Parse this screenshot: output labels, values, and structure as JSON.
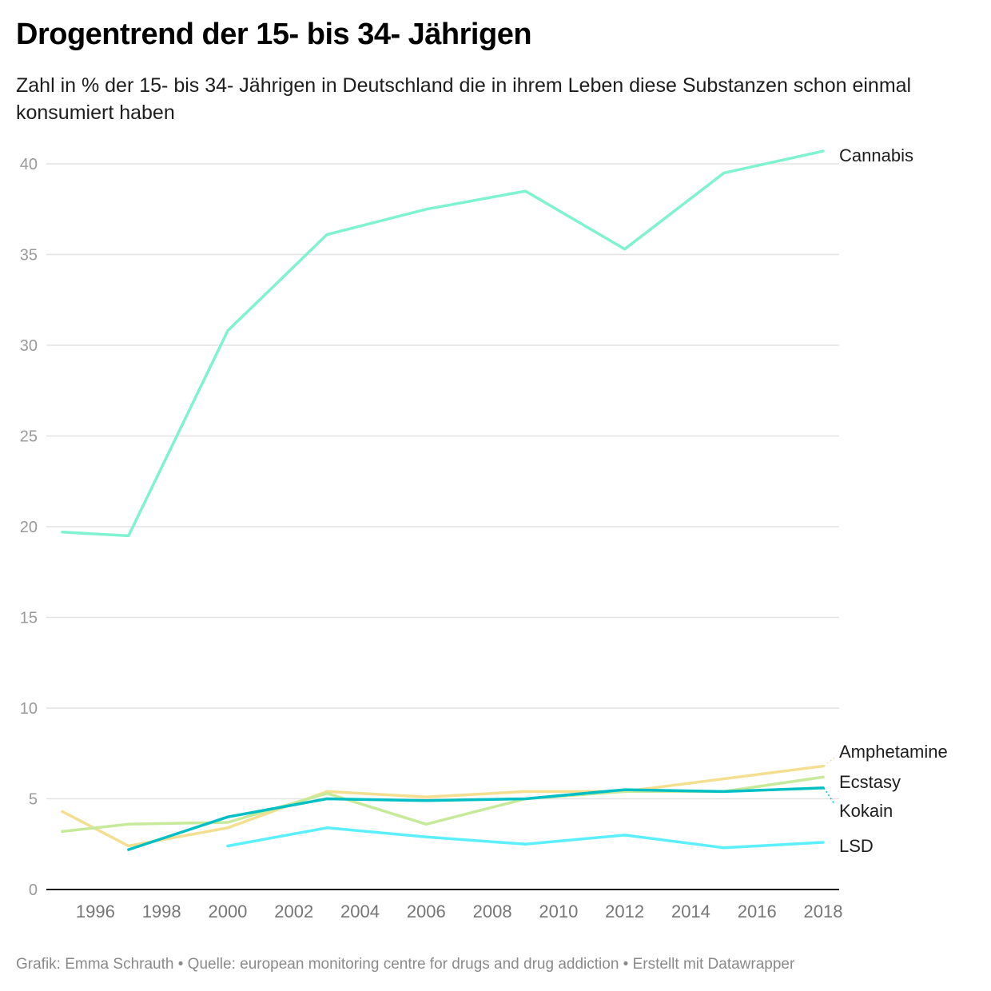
{
  "header": {
    "title": "Drogentrend der 15- bis 34- Jährigen",
    "subtitle": "Zahl in % der 15- bis 34- Jährigen in Deutschland die in ihrem Leben diese Substanzen schon einmal konsumiert haben"
  },
  "footer": {
    "text": "Grafik: Emma Schrauth • Quelle: european monitoring centre for drugs and drug addiction • Erstellt mit Datawrapper"
  },
  "chart_data": {
    "type": "line",
    "title": "Drogentrend der 15- bis 34- Jährigen",
    "subtitle": "Zahl in % der 15- bis 34- Jährigen in Deutschland die in ihrem Leben diese Substanzen schon einmal konsumiert haben",
    "xlabel": "",
    "ylabel": "",
    "xlim": [
      1995,
      2018
    ],
    "ylim": [
      0,
      40
    ],
    "grid": true,
    "legend": "direct-labels-right",
    "x_ticks": [
      "1996",
      "1998",
      "2000",
      "2002",
      "2004",
      "2006",
      "2008",
      "2010",
      "2012",
      "2014",
      "2016",
      "2018"
    ],
    "y_ticks": [
      "0",
      "5",
      "10",
      "15",
      "20",
      "25",
      "30",
      "35",
      "40"
    ],
    "x": [
      1995,
      1997,
      2000,
      2003,
      2006,
      2009,
      2012,
      2015,
      2018
    ],
    "series": [
      {
        "name": "Cannabis",
        "color": "#7ff2cf",
        "values": [
          19.7,
          19.5,
          30.8,
          36.1,
          37.5,
          38.5,
          35.3,
          39.5,
          40.7
        ]
      },
      {
        "name": "Amphetamine",
        "color": "#f4df91",
        "values": [
          4.3,
          2.4,
          3.4,
          5.4,
          5.1,
          5.4,
          5.4,
          6.1,
          6.8
        ]
      },
      {
        "name": "Ecstasy",
        "color": "#c6ea9a",
        "values": [
          3.2,
          3.6,
          3.7,
          5.3,
          3.6,
          5.0,
          5.4,
          5.4,
          6.2
        ]
      },
      {
        "name": "Kokain",
        "color": "#00bfc4",
        "values": [
          null,
          2.2,
          4.0,
          5.0,
          4.9,
          5.0,
          5.5,
          5.4,
          5.6
        ]
      },
      {
        "name": "LSD",
        "color": "#5cefff",
        "values": [
          null,
          null,
          2.4,
          3.4,
          2.9,
          2.5,
          3.0,
          2.3,
          2.6
        ]
      }
    ]
  }
}
